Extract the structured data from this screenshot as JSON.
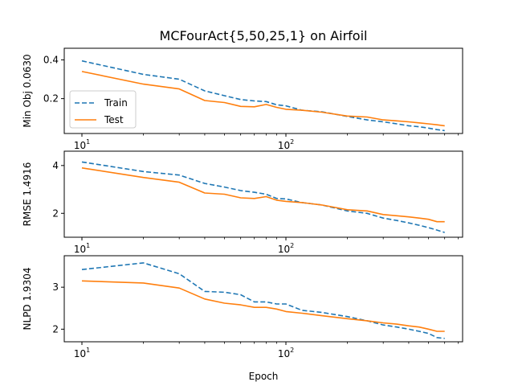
{
  "chart_data": {
    "title": "MCFourAct{5,50,25,1} on Airfoil",
    "type": "line",
    "x_scale": "log",
    "xlabel": "Epoch",
    "x_tick_labels": [
      {
        "x": 10,
        "base": "10",
        "exp": "1"
      },
      {
        "x": 100,
        "base": "10",
        "exp": "2"
      }
    ],
    "legend": {
      "location": "lower-left",
      "panel": 1,
      "entries": [
        "Train",
        "Test"
      ]
    },
    "series_styles": [
      {
        "name": "Train",
        "color": "#1f77b4",
        "dash": "dashed"
      },
      {
        "name": "Test",
        "color": "#ff7f0e",
        "dash": "solid"
      }
    ],
    "panels": [
      {
        "ylabel": "Min Obj 0.0630",
        "ylim": [
          0.02,
          0.46
        ],
        "yticks": [
          0.2,
          0.4
        ],
        "ytick_labels": [
          "0.2",
          "0.4"
        ],
        "series": [
          {
            "name": "Train",
            "x": [
              10,
              20,
              30,
              40,
              50,
              60,
              70,
              80,
              90,
              100,
              120,
              150,
              200,
              250,
              300,
              350,
              400,
              450,
              500,
              550,
              600
            ],
            "y": [
              0.395,
              0.325,
              0.3,
              0.24,
              0.215,
              0.195,
              0.188,
              0.185,
              0.168,
              0.163,
              0.14,
              0.132,
              0.108,
              0.09,
              0.08,
              0.07,
              0.06,
              0.055,
              0.048,
              0.04,
              0.035
            ]
          },
          {
            "name": "Test",
            "x": [
              10,
              20,
              30,
              40,
              50,
              60,
              70,
              80,
              90,
              100,
              120,
              150,
              200,
              250,
              300,
              350,
              400,
              450,
              500,
              550,
              600
            ],
            "y": [
              0.34,
              0.275,
              0.25,
              0.19,
              0.18,
              0.16,
              0.158,
              0.17,
              0.155,
              0.145,
              0.14,
              0.13,
              0.11,
              0.105,
              0.09,
              0.085,
              0.08,
              0.075,
              0.07,
              0.065,
              0.06
            ]
          }
        ]
      },
      {
        "ylabel": "RMSE 1.4916",
        "ylim": [
          1.0,
          4.6
        ],
        "yticks": [
          2,
          4
        ],
        "ytick_labels": [
          "2",
          "4"
        ],
        "series": [
          {
            "name": "Train",
            "x": [
              10,
              20,
              30,
              40,
              50,
              60,
              70,
              80,
              90,
              100,
              120,
              150,
              200,
              250,
              300,
              350,
              400,
              450,
              500,
              550,
              600
            ],
            "y": [
              4.15,
              3.75,
              3.6,
              3.25,
              3.1,
              2.95,
              2.88,
              2.8,
              2.62,
              2.6,
              2.45,
              2.35,
              2.1,
              2.0,
              1.8,
              1.7,
              1.6,
              1.5,
              1.4,
              1.3,
              1.2
            ]
          },
          {
            "name": "Test",
            "x": [
              10,
              20,
              30,
              40,
              50,
              60,
              70,
              80,
              90,
              100,
              120,
              150,
              200,
              250,
              300,
              350,
              400,
              450,
              500,
              550,
              600
            ],
            "y": [
              3.9,
              3.5,
              3.3,
              2.85,
              2.8,
              2.65,
              2.62,
              2.7,
              2.55,
              2.5,
              2.45,
              2.35,
              2.15,
              2.1,
              1.95,
              1.9,
              1.85,
              1.8,
              1.75,
              1.65,
              1.65
            ]
          }
        ]
      },
      {
        "ylabel": "NLPD 1.9304",
        "ylim": [
          1.7,
          3.75
        ],
        "yticks": [
          2,
          3
        ],
        "ytick_labels": [
          "2",
          "3"
        ],
        "series": [
          {
            "name": "Train",
            "x": [
              10,
              20,
              30,
              40,
              50,
              60,
              70,
              80,
              90,
              100,
              120,
              150,
              200,
              250,
              300,
              350,
              400,
              450,
              500,
              550,
              600
            ],
            "y": [
              3.42,
              3.58,
              3.32,
              2.9,
              2.88,
              2.82,
              2.65,
              2.65,
              2.6,
              2.6,
              2.45,
              2.4,
              2.3,
              2.2,
              2.1,
              2.05,
              2.0,
              1.95,
              1.9,
              1.8,
              1.78
            ]
          },
          {
            "name": "Test",
            "x": [
              10,
              20,
              30,
              40,
              50,
              60,
              70,
              80,
              90,
              100,
              120,
              150,
              200,
              250,
              300,
              350,
              400,
              450,
              500,
              550,
              600
            ],
            "y": [
              3.15,
              3.1,
              2.98,
              2.72,
              2.62,
              2.58,
              2.52,
              2.52,
              2.48,
              2.42,
              2.38,
              2.32,
              2.25,
              2.2,
              2.15,
              2.12,
              2.08,
              2.05,
              2.0,
              1.95,
              1.95
            ]
          }
        ]
      }
    ]
  }
}
